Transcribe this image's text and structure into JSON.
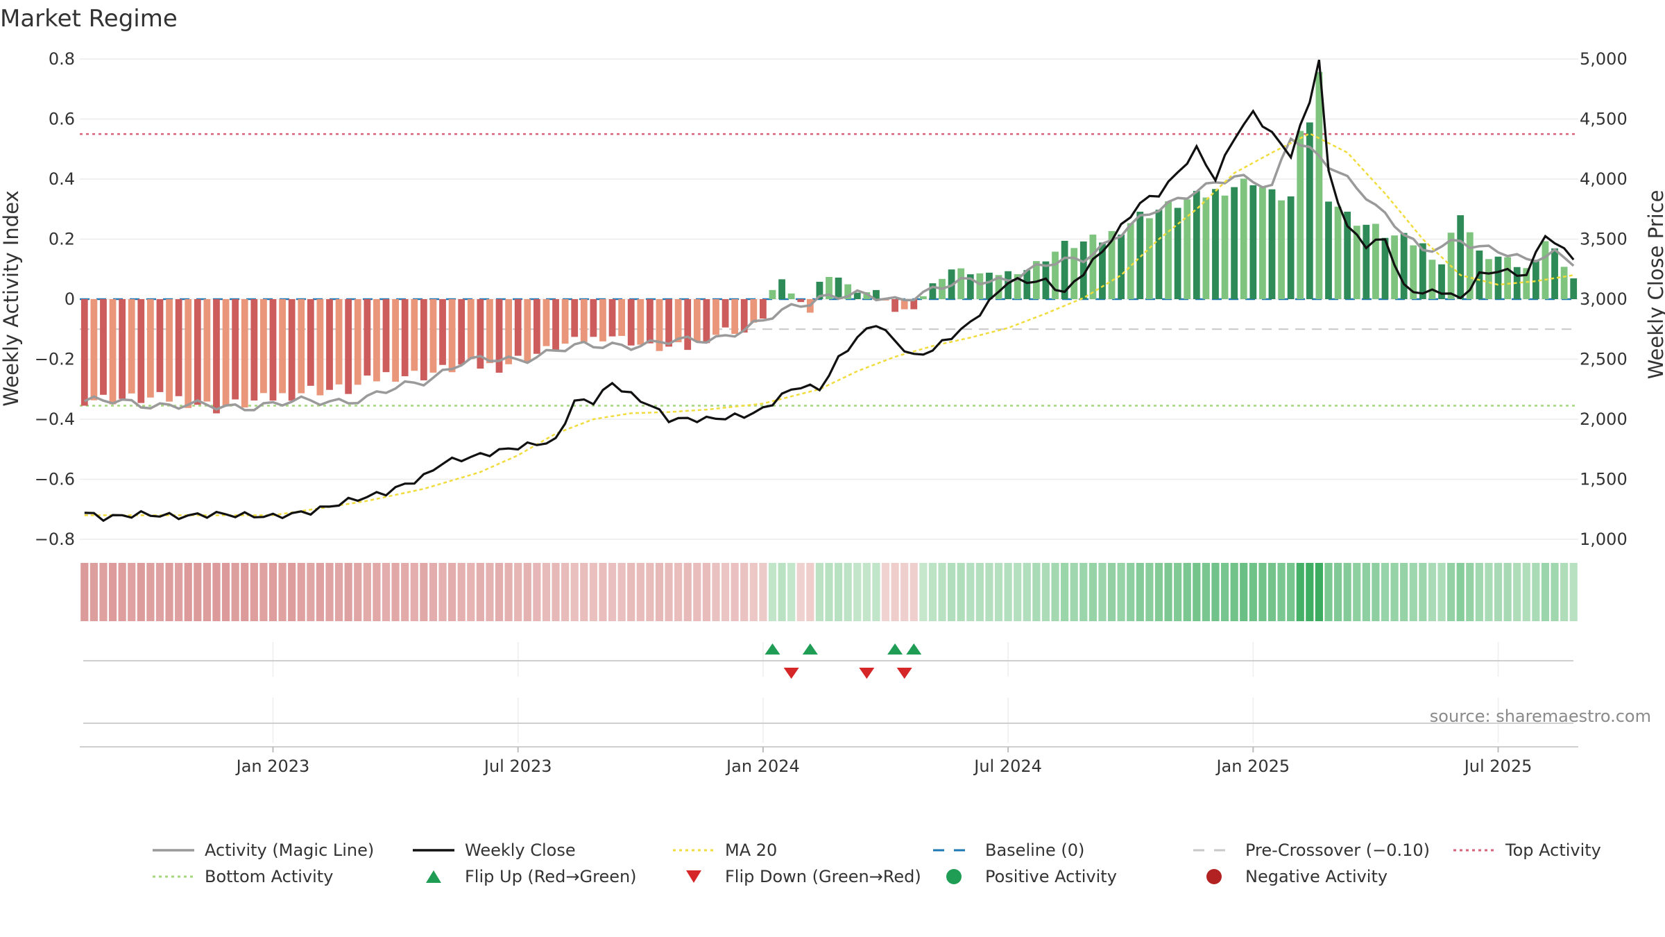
{
  "chart_data": {
    "type": "bar",
    "title": "Market Regime",
    "ylabel": "Weekly Activity Index",
    "ylabel_right": "Weekly Close Price",
    "source": "source: sharemaestro.com",
    "ylim": [
      -0.8,
      0.8
    ],
    "ylim_right": [
      1000,
      5000
    ],
    "yticks": [
      {
        "v": 0.8,
        "label": "0.8"
      },
      {
        "v": 0.6,
        "label": "0.6"
      },
      {
        "v": 0.4,
        "label": "0.4"
      },
      {
        "v": 0.2,
        "label": "0.2"
      },
      {
        "v": 0,
        "label": "0"
      },
      {
        "v": -0.2,
        "label": "−0.2"
      },
      {
        "v": -0.4,
        "label": "−0.4"
      },
      {
        "v": -0.6,
        "label": "−0.6"
      },
      {
        "v": -0.8,
        "label": "−0.8"
      }
    ],
    "yticks_right": [
      {
        "v": 5000,
        "label": "5,000"
      },
      {
        "v": 4500,
        "label": "4,500"
      },
      {
        "v": 4000,
        "label": "4,000"
      },
      {
        "v": 3500,
        "label": "3,500"
      },
      {
        "v": 3000,
        "label": "3,000"
      },
      {
        "v": 2500,
        "label": "2,500"
      },
      {
        "v": 2000,
        "label": "2,000"
      },
      {
        "v": 1500,
        "label": "1,500"
      },
      {
        "v": 1000,
        "label": "1,000"
      }
    ],
    "xticks": [
      {
        "week": 20,
        "label": "Jan 2023"
      },
      {
        "week": 46,
        "label": "Jul 2023"
      },
      {
        "week": 72,
        "label": "Jan 2024"
      },
      {
        "week": 98,
        "label": "Jul 2024"
      },
      {
        "week": 124,
        "label": "Jan 2025"
      },
      {
        "week": 150,
        "label": "Jul 2025"
      }
    ],
    "weeks_total": 158,
    "levels": {
      "top": 0.55,
      "bottom": -0.355,
      "pre_crossover": -0.1,
      "baseline": 0
    },
    "anchors": {
      "activity": [
        [
          0,
          -0.34
        ],
        [
          8,
          -0.35
        ],
        [
          14,
          -0.36
        ],
        [
          20,
          -0.35
        ],
        [
          30,
          -0.33
        ],
        [
          36,
          -0.27
        ],
        [
          40,
          -0.21
        ],
        [
          46,
          -0.2
        ],
        [
          50,
          -0.17
        ],
        [
          56,
          -0.15
        ],
        [
          60,
          -0.15
        ],
        [
          64,
          -0.14
        ],
        [
          68,
          -0.12
        ],
        [
          72,
          -0.08
        ],
        [
          74,
          -0.04
        ],
        [
          78,
          0.01
        ],
        [
          82,
          0.01
        ],
        [
          86,
          0.0
        ],
        [
          90,
          0.03
        ],
        [
          94,
          0.06
        ],
        [
          98,
          0.07
        ],
        [
          102,
          0.11
        ],
        [
          106,
          0.14
        ],
        [
          110,
          0.22
        ],
        [
          114,
          0.3
        ],
        [
          118,
          0.37
        ],
        [
          122,
          0.4
        ],
        [
          126,
          0.38
        ],
        [
          128,
          0.55
        ],
        [
          132,
          0.44
        ],
        [
          136,
          0.35
        ],
        [
          140,
          0.22
        ],
        [
          142,
          0.15
        ],
        [
          146,
          0.2
        ],
        [
          150,
          0.16
        ],
        [
          153,
          0.12
        ],
        [
          156,
          0.16
        ],
        [
          158,
          0.13
        ]
      ],
      "close": [
        [
          0,
          1220
        ],
        [
          2,
          1180
        ],
        [
          6,
          1210
        ],
        [
          10,
          1190
        ],
        [
          14,
          1210
        ],
        [
          20,
          1190
        ],
        [
          24,
          1230
        ],
        [
          28,
          1320
        ],
        [
          32,
          1390
        ],
        [
          36,
          1520
        ],
        [
          38,
          1640
        ],
        [
          42,
          1700
        ],
        [
          46,
          1770
        ],
        [
          50,
          1820
        ],
        [
          52,
          2150
        ],
        [
          54,
          2150
        ],
        [
          56,
          2300
        ],
        [
          58,
          2200
        ],
        [
          60,
          2120
        ],
        [
          62,
          2000
        ],
        [
          66,
          2000
        ],
        [
          70,
          2030
        ],
        [
          72,
          2080
        ],
        [
          74,
          2200
        ],
        [
          76,
          2280
        ],
        [
          78,
          2250
        ],
        [
          80,
          2500
        ],
        [
          82,
          2680
        ],
        [
          84,
          2800
        ],
        [
          86,
          2650
        ],
        [
          88,
          2520
        ],
        [
          90,
          2580
        ],
        [
          94,
          2800
        ],
        [
          98,
          3150
        ],
        [
          102,
          3150
        ],
        [
          104,
          3050
        ],
        [
          108,
          3400
        ],
        [
          112,
          3800
        ],
        [
          114,
          3880
        ],
        [
          116,
          4050
        ],
        [
          118,
          4250
        ],
        [
          120,
          4000
        ],
        [
          122,
          4350
        ],
        [
          124,
          4550
        ],
        [
          128,
          4200
        ],
        [
          130,
          4650
        ],
        [
          131,
          5000
        ],
        [
          132,
          4050
        ],
        [
          134,
          3600
        ],
        [
          136,
          3450
        ],
        [
          138,
          3500
        ],
        [
          140,
          3100
        ],
        [
          142,
          3050
        ],
        [
          144,
          3070
        ],
        [
          146,
          3000
        ],
        [
          148,
          3200
        ],
        [
          150,
          3240
        ],
        [
          153,
          3200
        ],
        [
          155,
          3550
        ],
        [
          156,
          3450
        ],
        [
          157,
          3420
        ],
        [
          158,
          3350
        ]
      ],
      "ma20": [
        [
          0,
          1200
        ],
        [
          10,
          1200
        ],
        [
          20,
          1200
        ],
        [
          26,
          1270
        ],
        [
          30,
          1320
        ],
        [
          36,
          1420
        ],
        [
          42,
          1560
        ],
        [
          46,
          1700
        ],
        [
          50,
          1880
        ],
        [
          54,
          2000
        ],
        [
          58,
          2050
        ],
        [
          62,
          2060
        ],
        [
          66,
          2080
        ],
        [
          72,
          2130
        ],
        [
          78,
          2250
        ],
        [
          82,
          2400
        ],
        [
          86,
          2520
        ],
        [
          90,
          2610
        ],
        [
          94,
          2680
        ],
        [
          98,
          2760
        ],
        [
          102,
          2880
        ],
        [
          106,
          3010
        ],
        [
          110,
          3200
        ],
        [
          114,
          3500
        ],
        [
          118,
          3750
        ],
        [
          122,
          4050
        ],
        [
          126,
          4220
        ],
        [
          130,
          4380
        ],
        [
          134,
          4220
        ],
        [
          138,
          3880
        ],
        [
          142,
          3500
        ],
        [
          146,
          3200
        ],
        [
          150,
          3120
        ],
        [
          154,
          3150
        ],
        [
          158,
          3200
        ]
      ],
      "bar": [
        [
          0,
          -0.33
        ],
        [
          10,
          -0.33
        ],
        [
          14,
          -0.36
        ],
        [
          18,
          -0.34
        ],
        [
          24,
          -0.3
        ],
        [
          28,
          -0.3
        ],
        [
          32,
          -0.25
        ],
        [
          36,
          -0.25
        ],
        [
          40,
          -0.22
        ],
        [
          44,
          -0.22
        ],
        [
          48,
          -0.18
        ],
        [
          52,
          -0.14
        ],
        [
          56,
          -0.12
        ],
        [
          60,
          -0.16
        ],
        [
          64,
          -0.16
        ],
        [
          68,
          -0.1
        ],
        [
          70,
          -0.11
        ],
        [
          72,
          -0.06
        ],
        [
          73,
          0.03
        ],
        [
          74,
          0.06
        ],
        [
          75,
          0.02
        ],
        [
          77,
          -0.04
        ],
        [
          78,
          0.06
        ],
        [
          80,
          0.08
        ],
        [
          82,
          0.02
        ],
        [
          84,
          0.03
        ],
        [
          86,
          -0.04
        ],
        [
          88,
          -0.03
        ],
        [
          90,
          0.05
        ],
        [
          92,
          0.1
        ],
        [
          96,
          0.08
        ],
        [
          100,
          0.1
        ],
        [
          104,
          0.18
        ],
        [
          108,
          0.2
        ],
        [
          112,
          0.28
        ],
        [
          116,
          0.32
        ],
        [
          120,
          0.36
        ],
        [
          124,
          0.4
        ],
        [
          126,
          0.35
        ],
        [
          128,
          0.34
        ],
        [
          129,
          0.54
        ],
        [
          130,
          0.6
        ],
        [
          131,
          0.75
        ],
        [
          132,
          0.35
        ],
        [
          134,
          0.28
        ],
        [
          136,
          0.25
        ],
        [
          138,
          0.22
        ],
        [
          140,
          0.2
        ],
        [
          142,
          0.18
        ],
        [
          144,
          0.12
        ],
        [
          146,
          0.3
        ],
        [
          148,
          0.15
        ],
        [
          150,
          0.14
        ],
        [
          153,
          0.1
        ],
        [
          155,
          0.2
        ],
        [
          157,
          0.12
        ],
        [
          158,
          0.07
        ]
      ]
    },
    "flips_up_weeks": [
      73,
      77,
      86,
      88
    ],
    "flips_down_weeks": [
      75,
      83,
      87
    ],
    "legend": [
      {
        "label": "Activity (Magic Line)",
        "kind": "line",
        "color": "#9a9a9a"
      },
      {
        "label": "Weekly Close",
        "kind": "line",
        "color": "#111111"
      },
      {
        "label": "MA 20",
        "kind": "dotted",
        "color": "#f0dc3c"
      },
      {
        "label": "Baseline (0)",
        "kind": "dashed",
        "color": "#1f77b4"
      },
      {
        "label": "Pre-Crossover (−0.10)",
        "kind": "dashed",
        "color": "#c8c8c8"
      },
      {
        "label": "Top Activity",
        "kind": "dotted",
        "color": "#d9617a"
      },
      {
        "label": "Bottom Activity",
        "kind": "dotted",
        "color": "#a4d77a"
      },
      {
        "label": "Flip Up (Red→Green)",
        "kind": "triangle-up",
        "color": "#1f9d55"
      },
      {
        "label": "Flip Down (Green→Red)",
        "kind": "triangle-down",
        "color": "#d62728"
      },
      {
        "label": "Positive Activity",
        "kind": "circle",
        "color": "#1f9d55"
      },
      {
        "label": "Negative Activity",
        "kind": "circle",
        "color": "#b22222"
      }
    ],
    "colors": {
      "positive_strong": "#2e8b57",
      "positive_light": "#7ec47e",
      "negative_strong": "#cd5c5c",
      "negative_light": "#e9967a"
    }
  }
}
